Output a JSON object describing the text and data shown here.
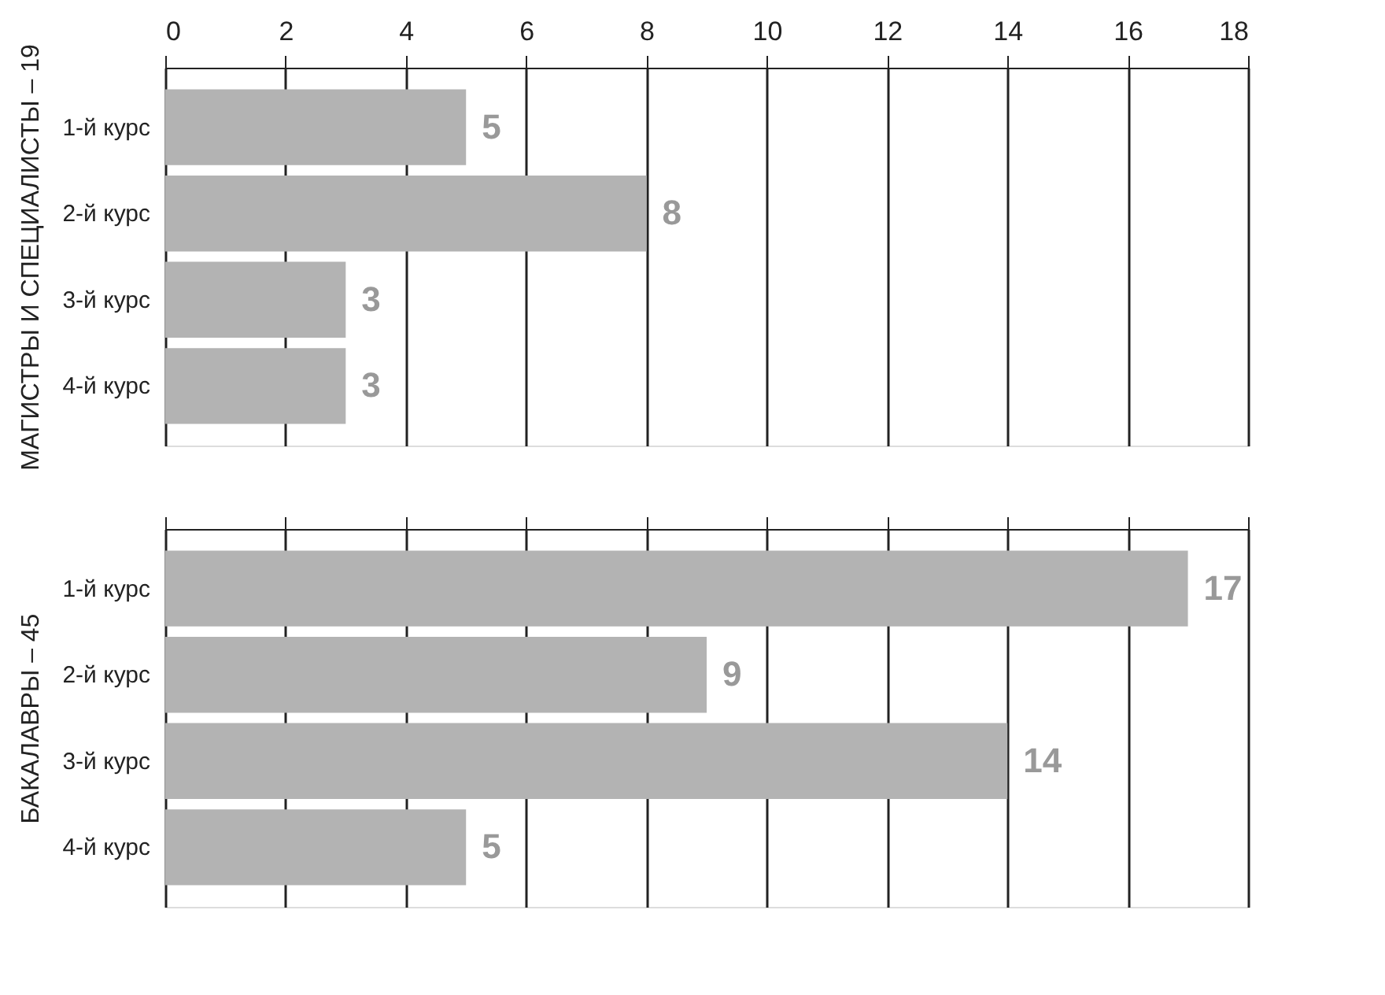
{
  "chart_data": [
    {
      "type": "bar",
      "orientation": "horizontal",
      "ylabel": "МАГИСТРЫ И СПЕЦИАЛИСТЫ – 19",
      "categories": [
        "1-й курс",
        "2-й курс",
        "3-й курс",
        "4-й курс"
      ],
      "values": [
        5,
        8,
        3,
        3
      ],
      "color": "#b3b3b3",
      "xlim": [
        0,
        18
      ],
      "xticks": [
        0,
        2,
        4,
        6,
        8,
        10,
        12,
        14,
        16,
        18
      ],
      "grid": "x",
      "data_labels": true
    },
    {
      "type": "bar",
      "orientation": "horizontal",
      "ylabel": "БАКАЛАВРЫ – 45",
      "categories": [
        "1-й курс",
        "2-й курс",
        "3-й курс",
        "4-й курс"
      ],
      "values": [
        17,
        9,
        14,
        5
      ],
      "color": "#b3b3b3",
      "xlim": [
        0,
        18
      ],
      "xticks": [
        0,
        2,
        4,
        6,
        8,
        10,
        12,
        14,
        16,
        18
      ],
      "grid": "x",
      "data_labels": true,
      "tick_labels": "y"
    }
  ]
}
